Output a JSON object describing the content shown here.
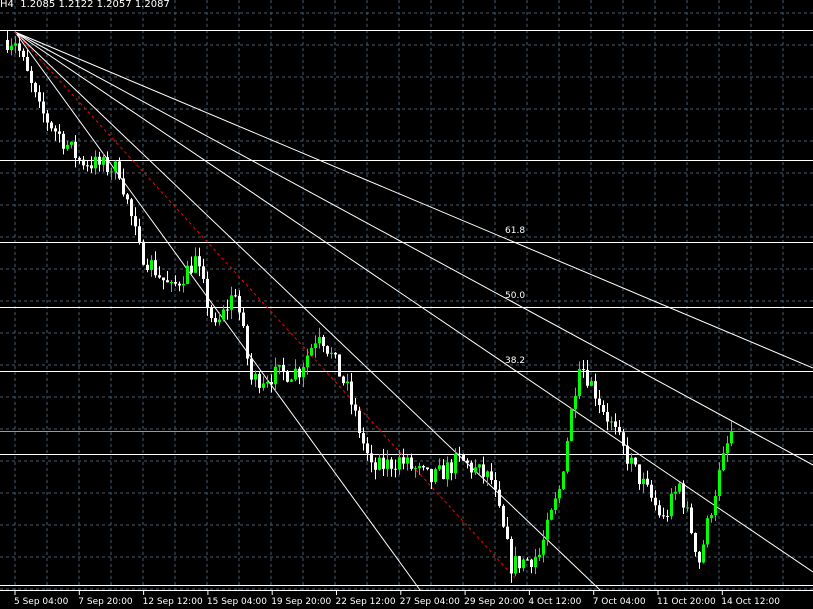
{
  "header": {
    "symbol_tf": "H4",
    "open": "1.2085",
    "high": "1.2122",
    "low": "1.2057",
    "close": "1.2087"
  },
  "chart_data": {
    "type": "candlestick",
    "title": "",
    "x_tick_labels": [
      "5 Sep 04:00",
      "7 Sep 20:00",
      "12 Sep 12:00",
      "15 Sep 04:00",
      "19 Sep 20:00",
      "22 Sep 12:00",
      "27 Sep 04:00",
      "29 Sep 20:00",
      "4 Oct 12:00",
      "7 Oct 04:00",
      "11 Oct 20:00",
      "14 Oct 12:00"
    ],
    "close_path": [
      {
        "bar": 2,
        "price": 1.2869
      },
      {
        "bar": 8,
        "price": 1.2729
      },
      {
        "bar": 18,
        "price": 1.2629
      },
      {
        "bar": 28,
        "price": 1.2609
      },
      {
        "bar": 33,
        "price": 1.2449
      },
      {
        "bar": 41,
        "price": 1.2369
      },
      {
        "bar": 47,
        "price": 1.2429
      },
      {
        "bar": 52,
        "price": 1.2289
      },
      {
        "bar": 57,
        "price": 1.2369
      },
      {
        "bar": 61,
        "price": 1.2189
      },
      {
        "bar": 73,
        "price": 1.2209
      },
      {
        "bar": 78,
        "price": 1.2289
      },
      {
        "bar": 85,
        "price": 1.2169
      },
      {
        "bar": 91,
        "price": 1.2009
      },
      {
        "bar": 98,
        "price": 1.2029
      },
      {
        "bar": 106,
        "price": 1.1989
      },
      {
        "bar": 113,
        "price": 1.2029
      },
      {
        "bar": 121,
        "price": 1.1989
      },
      {
        "bar": 126,
        "price": 1.1819
      },
      {
        "bar": 133,
        "price": 1.1839
      },
      {
        "bar": 138,
        "price": 1.1969
      },
      {
        "bar": 143,
        "price": 1.2229
      },
      {
        "bar": 148,
        "price": 1.2149
      },
      {
        "bar": 154,
        "price": 1.2049
      },
      {
        "bar": 164,
        "price": 1.1909
      },
      {
        "bar": 168,
        "price": 1.1979
      },
      {
        "bar": 173,
        "price": 1.1829
      },
      {
        "bar": 177,
        "price": 1.1969
      },
      {
        "bar": 181,
        "price": 1.2087
      }
    ],
    "fibonacci_fan_levels": [
      "61.8",
      "50.0",
      "38.2"
    ],
    "current_price": 1.2087,
    "grid": true,
    "colors": {
      "background": "#000000",
      "bull": "#00ff00",
      "bear": "#ffffff",
      "grid": "#4a5a6a",
      "price_line": "#7aa0c8",
      "trendline": "#ff0000"
    }
  }
}
